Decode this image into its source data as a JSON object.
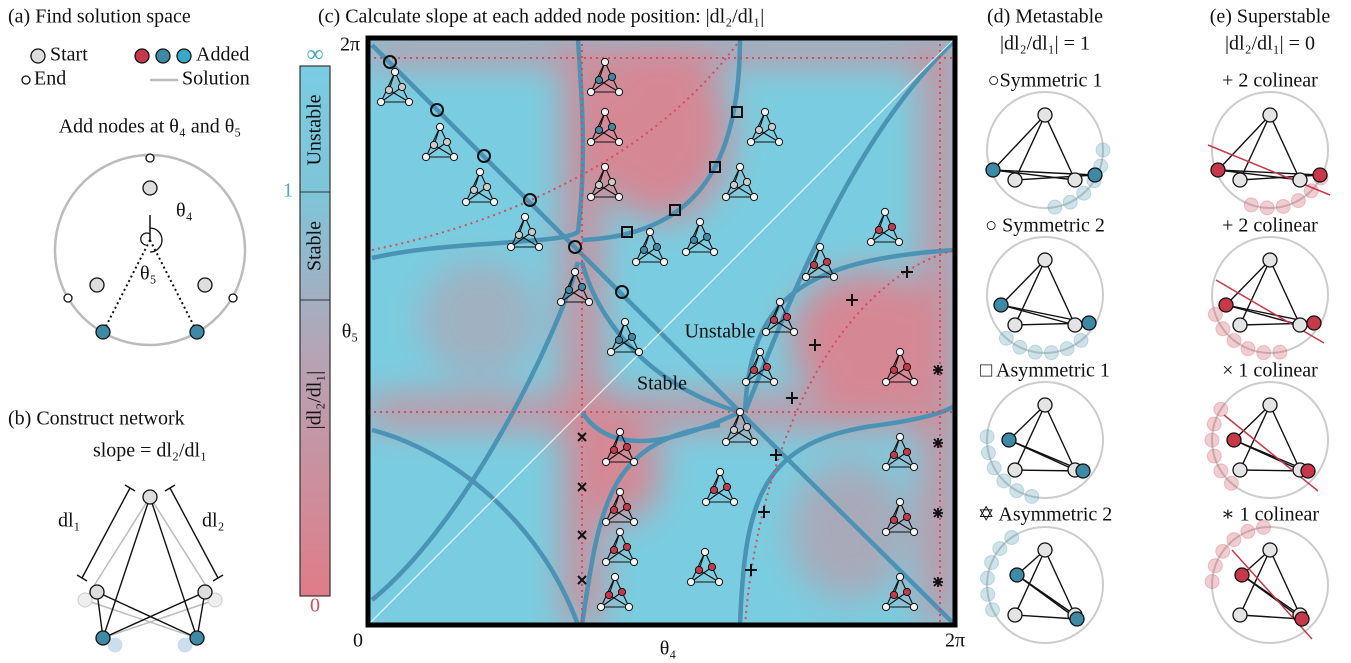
{
  "panel_a": {
    "title": "(a) Find solution space",
    "legend": {
      "start": "Start",
      "end": "End",
      "added": "Added",
      "solution": "Solution"
    },
    "caption": "Add nodes at θ₄ and θ₅",
    "angle_labels": [
      "θ₄",
      "θ₅"
    ]
  },
  "panel_b": {
    "title": "(b) Construct network",
    "subtitle": "slope = dl₂/dl₁",
    "labels": [
      "dl₁",
      "dl₂"
    ]
  },
  "panel_c": {
    "title": "(c) Calculate slope at each added node position: |dl₂/dl₁|",
    "colorbar": {
      "ticks": [
        "∞",
        "1",
        "0"
      ],
      "regions": [
        "Unstable",
        "Stable"
      ],
      "label": "|dl₂/dl₁|"
    },
    "axes": {
      "x_label": "θ₄",
      "y_label": "θ₅",
      "origin": "0",
      "x_max": "2π",
      "y_max": "2π"
    },
    "regions": [
      "Unstable",
      "Stable"
    ]
  },
  "panel_d": {
    "title": "(d) Metastable",
    "subtitle": "|dl₂/dl₁| = 1",
    "items": [
      "○Symmetric 1",
      "○ Symmetric 2",
      "□ Asymmetric 1",
      "✡ Asymmetric 2"
    ]
  },
  "panel_e": {
    "title": "(e) Superstable",
    "subtitle": "|dl₂/dl₁| = 0",
    "items": [
      "+ 2 colinear",
      "+ 2 colinear",
      "× 1 colinear",
      "∗ 1 colinear"
    ]
  }
}
